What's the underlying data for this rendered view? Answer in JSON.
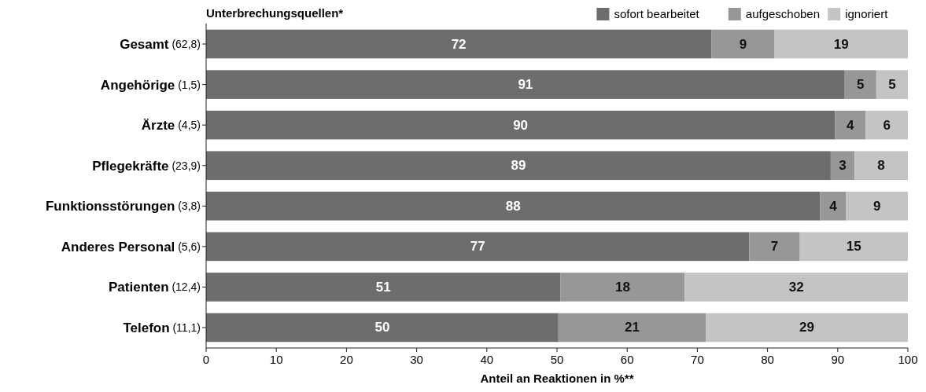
{
  "chart_data": {
    "type": "bar",
    "orientation": "horizontal",
    "stacked": true,
    "title": "Unterbrechungsquellen*",
    "xlabel": "Anteil an Reaktionen in %**",
    "categories": [
      "Gesamt (62,8)",
      "Angehörige (1,5)",
      "Ärzte (4,5)",
      "Pflegekräfte (23,9)",
      "Funktionsstörungen (3,8)",
      "Anderes Personal (5,6)",
      "Patienten (12,4)",
      "Telefon (11,1)"
    ],
    "series": [
      {
        "name": "sofort bearbeitet",
        "color": "#6d6d6f",
        "values": [
          72,
          91,
          89.6,
          89,
          87.5,
          77.4,
          50.5,
          50.2
        ],
        "value_labels": [
          "72",
          "91",
          "90",
          "89",
          "88",
          "77",
          "51",
          "50"
        ]
      },
      {
        "name": "aufgeschoben",
        "color": "#97979a",
        "values": [
          9,
          4.5,
          4.4,
          3.4,
          3.7,
          7.2,
          17.7,
          21
        ],
        "value_labels": [
          "9",
          "5",
          "4",
          "3",
          "4",
          "7",
          "18",
          "21"
        ]
      },
      {
        "name": "ignoriert",
        "color": "#c4c4c6",
        "values": [
          19,
          4.5,
          6,
          7.6,
          8.8,
          15.4,
          31.8,
          28.8
        ],
        "value_labels": [
          "19",
          "5",
          "6",
          "8",
          "9",
          "15",
          "32",
          "29"
        ]
      }
    ],
    "xlim": [
      0,
      100
    ],
    "xticks": [
      0,
      10,
      20,
      30,
      40,
      50,
      60,
      70,
      80,
      90,
      100
    ],
    "grid": false,
    "legend": "top right"
  }
}
